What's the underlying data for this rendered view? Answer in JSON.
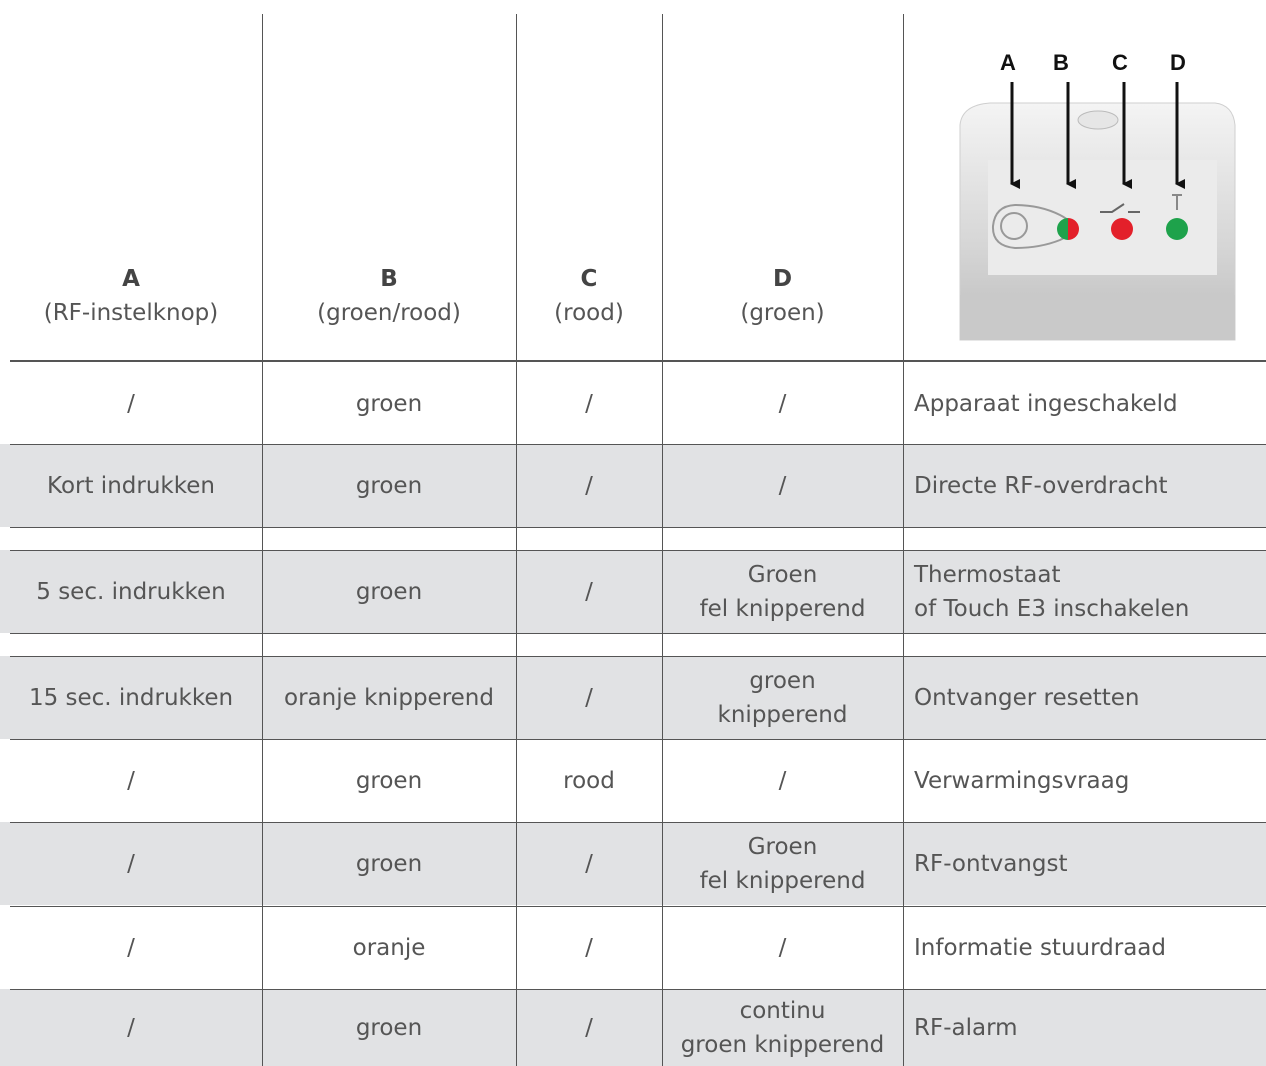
{
  "header": {
    "columns": [
      {
        "letter": "A",
        "desc": "(RF-instelknop)"
      },
      {
        "letter": "B",
        "desc": "(groen/rood)"
      },
      {
        "letter": "C",
        "desc": "(rood)"
      },
      {
        "letter": "D",
        "desc": "(groen)"
      }
    ],
    "image": {
      "labels": [
        "A",
        "B",
        "C",
        "D"
      ]
    }
  },
  "table": {
    "rows": [
      [
        [
          "/"
        ],
        [
          "groen"
        ],
        [
          "/"
        ],
        [
          "/"
        ],
        [
          "Apparaat ingeschakeld"
        ]
      ],
      [
        [
          "Kort indrukken"
        ],
        [
          "groen"
        ],
        [
          "/"
        ],
        [
          "/"
        ],
        [
          "Directe RF-overdracht"
        ]
      ],
      [
        [
          "5 sec. indrukken"
        ],
        [
          "groen"
        ],
        [
          "/"
        ],
        [
          "Groen",
          "fel knipperend"
        ],
        [
          "Thermostaat",
          "of Touch E3 inschakelen"
        ]
      ],
      [
        [
          "15 sec. indrukken"
        ],
        [
          "oranje knipperend"
        ],
        [
          "/"
        ],
        [
          "groen",
          "knipperend"
        ],
        [
          "Ontvanger resetten"
        ]
      ],
      [
        [
          "/"
        ],
        [
          "groen"
        ],
        [
          "rood"
        ],
        [
          "/"
        ],
        [
          "Verwarmingsvraag"
        ]
      ],
      [
        [
          "/"
        ],
        [
          "groen"
        ],
        [
          "/"
        ],
        [
          "Groen",
          "fel knipperend"
        ],
        [
          "RF-ontvangst"
        ]
      ],
      [
        [
          "/"
        ],
        [
          "oranje"
        ],
        [
          "/"
        ],
        [
          "/"
        ],
        [
          "Informatie stuurdraad"
        ]
      ],
      [
        [
          "/"
        ],
        [
          "groen"
        ],
        [
          "/"
        ],
        [
          "continu",
          "groen knipperend"
        ],
        [
          "RF-alarm"
        ]
      ]
    ]
  }
}
